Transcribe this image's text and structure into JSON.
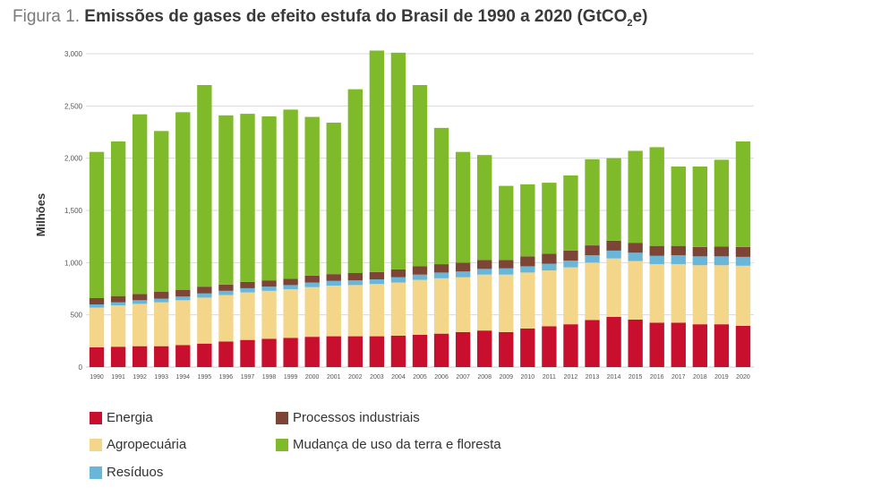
{
  "title": {
    "prefix": "Figura 1.",
    "text": "Emissões de gases de efeito estufa do Brasil de 1990 a 2020 (GtCO",
    "sub": "2",
    "suffix": "e)"
  },
  "chart_data": {
    "type": "bar",
    "stacked": true,
    "title": "Emissões de gases de efeito estufa do Brasil de 1990 a 2020 (GtCO2e)",
    "xlabel": "",
    "ylabel": "Milhões",
    "ylim": [
      0,
      3000
    ],
    "yticks": [
      0,
      500,
      1000,
      1500,
      2000,
      2500,
      3000
    ],
    "ytick_labels": [
      "0",
      "500",
      "1,000",
      "1,500",
      "2,000",
      "2,500",
      "3,000"
    ],
    "grid": true,
    "legend_position": "bottom",
    "categories": [
      "1990",
      "1991",
      "1992",
      "1993",
      "1994",
      "1995",
      "1996",
      "1997",
      "1998",
      "1999",
      "2000",
      "2001",
      "2002",
      "2003",
      "2004",
      "2005",
      "2006",
      "2007",
      "2008",
      "2009",
      "2010",
      "2011",
      "2012",
      "2013",
      "2014",
      "2015",
      "2016",
      "2017",
      "2018",
      "2019",
      "2020"
    ],
    "series": [
      {
        "name": "Energia",
        "color": "#c8102e",
        "values": [
          190,
          195,
          200,
          200,
          210,
          225,
          245,
          260,
          270,
          280,
          290,
          295,
          295,
          295,
          300,
          310,
          320,
          335,
          350,
          335,
          370,
          390,
          410,
          450,
          480,
          455,
          425,
          425,
          410,
          410,
          395
        ]
      },
      {
        "name": "Agropecuária",
        "color": "#f3d68a",
        "values": [
          380,
          395,
          405,
          420,
          430,
          440,
          445,
          455,
          460,
          465,
          475,
          485,
          490,
          500,
          510,
          525,
          530,
          525,
          535,
          550,
          535,
          535,
          545,
          550,
          560,
          560,
          560,
          560,
          565,
          565,
          575
        ]
      },
      {
        "name": "Resíduos",
        "color": "#6ab6d8",
        "values": [
          30,
          30,
          35,
          35,
          35,
          40,
          40,
          40,
          40,
          40,
          45,
          45,
          45,
          45,
          50,
          50,
          55,
          55,
          55,
          60,
          60,
          65,
          65,
          70,
          75,
          80,
          80,
          85,
          85,
          85,
          85
        ]
      },
      {
        "name": "Processos industriais",
        "color": "#7c4535",
        "values": [
          60,
          60,
          60,
          65,
          65,
          65,
          60,
          60,
          60,
          60,
          65,
          65,
          70,
          70,
          75,
          80,
          80,
          85,
          85,
          80,
          95,
          95,
          95,
          95,
          95,
          95,
          95,
          90,
          90,
          95,
          95
        ]
      },
      {
        "name": "Mudança de uso da terra e floresta",
        "color": "#7fba2a",
        "values": [
          1400,
          1480,
          1720,
          1540,
          1700,
          1930,
          1620,
          1610,
          1570,
          1620,
          1520,
          1450,
          1760,
          2120,
          2075,
          1735,
          1305,
          1060,
          1005,
          710,
          690,
          680,
          720,
          825,
          790,
          880,
          945,
          760,
          770,
          830,
          1010
        ]
      }
    ]
  },
  "legend": {
    "items": [
      {
        "label": "Energia",
        "color": "#c8102e"
      },
      {
        "label": "Processos industriais",
        "color": "#7c4535"
      },
      {
        "label": "Agropecuária",
        "color": "#f3d68a"
      },
      {
        "label": "Mudança de uso da terra e floresta",
        "color": "#7fba2a"
      },
      {
        "label": "Resíduos",
        "color": "#6ab6d8"
      }
    ]
  }
}
